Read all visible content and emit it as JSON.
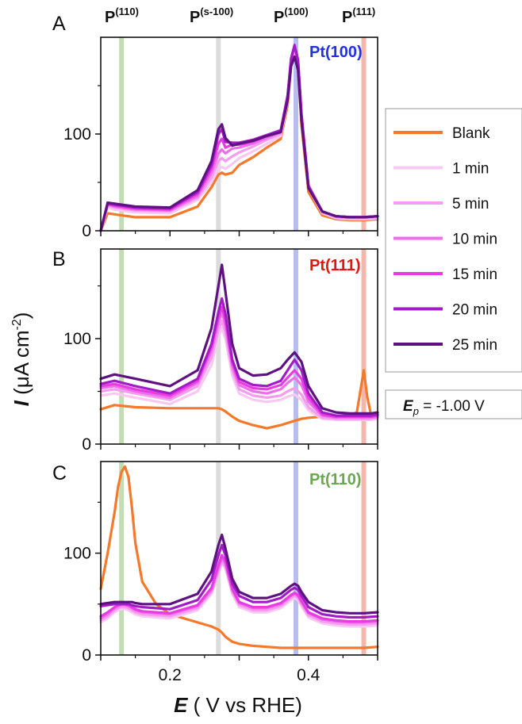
{
  "figure": {
    "peak_labels": [
      {
        "id": "p110",
        "base": "P",
        "sup": "(110)",
        "x": 0.13,
        "band_color": "#b9d7a6"
      },
      {
        "id": "ps100",
        "base": "P",
        "sup": "(s-100)",
        "x": 0.27,
        "band_color": "#d6d6d6"
      },
      {
        "id": "p100",
        "base": "P",
        "sup": "(100)",
        "x": 0.382,
        "band_color": "#aab0ee"
      },
      {
        "id": "p111",
        "base": "P",
        "sup": "(111)",
        "x": 0.48,
        "band_color": "#f2aaa0"
      }
    ],
    "ylabel": {
      "italic": "I",
      "unit_start": " (μA cm",
      "unit_sup": "-2",
      "unit_end": ")"
    },
    "xlabel": {
      "italic": "E",
      "rest": " ( V vs RHE)"
    },
    "potential_box": {
      "italic": "E",
      "sub": "p",
      "rest": " = -1.00 V"
    },
    "legend": [
      {
        "label": "Blank",
        "color": "#f4792b"
      },
      {
        "label": " 1 min",
        "color": "#f7c9f2"
      },
      {
        "label": " 5 min",
        "color": "#f49cef"
      },
      {
        "label": "10 min",
        "color": "#ef6ee9"
      },
      {
        "label": "15 min",
        "color": "#e83be2"
      },
      {
        "label": "20 min",
        "color": "#a21cc6"
      },
      {
        "label": "25 min",
        "color": "#5e1282"
      }
    ]
  },
  "chart_data": [
    {
      "type": "line",
      "panel": "A",
      "surface_label": "Pt(100)",
      "surface_color": "#2230e6",
      "xlim": [
        0.1,
        0.5
      ],
      "ylim": [
        0,
        200
      ],
      "xticks": [
        0.2,
        0.4
      ],
      "yticks": [
        0,
        100
      ],
      "x": [
        0.1,
        0.11,
        0.12,
        0.15,
        0.2,
        0.24,
        0.26,
        0.27,
        0.275,
        0.28,
        0.29,
        0.3,
        0.32,
        0.34,
        0.36,
        0.37,
        0.375,
        0.38,
        0.385,
        0.39,
        0.4,
        0.42,
        0.44,
        0.46,
        0.48,
        0.5
      ],
      "series": [
        {
          "name": "Blank",
          "values": [
            0,
            18,
            17,
            14,
            14,
            25,
            45,
            58,
            60,
            58,
            60,
            68,
            76,
            86,
            95,
            130,
            170,
            186,
            170,
            110,
            40,
            16,
            12,
            11,
            11,
            12
          ]
        },
        {
          "name": "1 min",
          "values": [
            0,
            24,
            22,
            19,
            18,
            32,
            50,
            64,
            66,
            64,
            69,
            75,
            82,
            90,
            98,
            134,
            172,
            188,
            172,
            116,
            44,
            18,
            13,
            12,
            12,
            13
          ]
        },
        {
          "name": "5 min",
          "values": [
            0,
            26,
            24,
            21,
            20,
            34,
            55,
            72,
            75,
            72,
            77,
            81,
            87,
            94,
            100,
            137,
            174,
            189,
            174,
            118,
            45,
            19,
            14,
            13,
            13,
            14
          ]
        },
        {
          "name": "10 min",
          "values": [
            0,
            27,
            25,
            22,
            21,
            36,
            60,
            80,
            84,
            80,
            85,
            86,
            90,
            96,
            102,
            139,
            176,
            190,
            176,
            120,
            46,
            20,
            15,
            14,
            14,
            15
          ]
        },
        {
          "name": "15 min",
          "values": [
            0,
            28,
            26,
            23,
            22,
            38,
            64,
            90,
            95,
            86,
            89,
            89,
            92,
            98,
            103,
            140,
            177,
            191,
            177,
            121,
            47,
            20,
            15,
            14,
            14,
            15
          ]
        },
        {
          "name": "20 min",
          "values": [
            0,
            28,
            27,
            24,
            23,
            40,
            68,
            100,
            105,
            92,
            91,
            91,
            94,
            99,
            104,
            140,
            178,
            192,
            176,
            120,
            46,
            20,
            15,
            14,
            14,
            15
          ]
        },
        {
          "name": "25 min",
          "values": [
            0,
            29,
            28,
            25,
            24,
            42,
            72,
            105,
            110,
            96,
            88,
            90,
            93,
            98,
            102,
            135,
            170,
            180,
            166,
            114,
            44,
            20,
            15,
            14,
            14,
            15
          ]
        }
      ]
    },
    {
      "type": "line",
      "panel": "B",
      "surface_label": "Pt(111)",
      "surface_color": "#e8150f",
      "xlim": [
        0.1,
        0.5
      ],
      "ylim": [
        0,
        185
      ],
      "xticks": [
        0.2,
        0.4
      ],
      "yticks": [
        0,
        100
      ],
      "x": [
        0.1,
        0.12,
        0.15,
        0.2,
        0.24,
        0.26,
        0.27,
        0.275,
        0.28,
        0.29,
        0.3,
        0.32,
        0.34,
        0.36,
        0.37,
        0.38,
        0.39,
        0.4,
        0.42,
        0.44,
        0.46,
        0.47,
        0.475,
        0.48,
        0.485,
        0.49,
        0.5
      ],
      "series": [
        {
          "name": "Blank",
          "values": [
            33,
            37,
            35,
            34,
            34,
            34,
            34,
            33,
            31,
            26,
            22,
            18,
            15,
            18,
            20,
            22,
            24,
            25,
            26,
            26,
            27,
            30,
            50,
            70,
            45,
            29,
            28
          ]
        },
        {
          "name": "1 min",
          "values": [
            46,
            48,
            44,
            38,
            50,
            75,
            102,
            110,
            100,
            65,
            48,
            42,
            40,
            42,
            45,
            47,
            42,
            32,
            24,
            23,
            23,
            23,
            23,
            23,
            23,
            23,
            24
          ]
        },
        {
          "name": "5 min",
          "values": [
            50,
            52,
            48,
            42,
            55,
            82,
            108,
            117,
            106,
            70,
            52,
            46,
            44,
            46,
            50,
            53,
            47,
            35,
            25,
            24,
            24,
            24,
            24,
            24,
            24,
            24,
            25
          ]
        },
        {
          "name": "10 min",
          "values": [
            53,
            55,
            50,
            44,
            58,
            88,
            115,
            125,
            113,
            74,
            56,
            50,
            48,
            52,
            58,
            63,
            56,
            40,
            27,
            25,
            25,
            25,
            25,
            25,
            25,
            25,
            26
          ]
        },
        {
          "name": "15 min",
          "values": [
            55,
            57,
            52,
            46,
            60,
            92,
            120,
            130,
            118,
            77,
            59,
            53,
            52,
            56,
            63,
            70,
            62,
            44,
            28,
            26,
            26,
            26,
            26,
            26,
            26,
            26,
            27
          ]
        },
        {
          "name": "20 min",
          "values": [
            57,
            60,
            55,
            48,
            62,
            95,
            125,
            138,
            124,
            80,
            62,
            56,
            55,
            60,
            70,
            80,
            70,
            48,
            30,
            27,
            27,
            27,
            27,
            27,
            27,
            27,
            28
          ]
        },
        {
          "name": "25 min",
          "values": [
            62,
            66,
            62,
            55,
            70,
            110,
            150,
            170,
            145,
            95,
            72,
            65,
            66,
            72,
            80,
            87,
            78,
            55,
            34,
            30,
            29,
            29,
            29,
            29,
            29,
            29,
            30
          ]
        }
      ]
    },
    {
      "type": "line",
      "panel": "C",
      "surface_label": "Pt(110)",
      "surface_color": "#6aa84f",
      "xlim": [
        0.1,
        0.5
      ],
      "ylim": [
        0,
        190
      ],
      "xticks": [
        0.2,
        0.4
      ],
      "yticks": [
        0,
        100
      ],
      "x": [
        0.1,
        0.11,
        0.12,
        0.125,
        0.13,
        0.135,
        0.14,
        0.145,
        0.15,
        0.16,
        0.18,
        0.2,
        0.24,
        0.26,
        0.27,
        0.275,
        0.28,
        0.29,
        0.3,
        0.32,
        0.34,
        0.36,
        0.375,
        0.38,
        0.385,
        0.39,
        0.4,
        0.42,
        0.44,
        0.46,
        0.48,
        0.5
      ],
      "series": [
        {
          "name": "Blank",
          "values": [
            65,
            100,
            140,
            165,
            180,
            185,
            175,
            145,
            110,
            72,
            50,
            40,
            32,
            28,
            25,
            22,
            18,
            13,
            11,
            9,
            8,
            7,
            7,
            7,
            7,
            7,
            7,
            7,
            7,
            7,
            7,
            8
          ]
        },
        {
          "name": "1 min",
          "values": [
            32,
            36,
            42,
            44,
            45,
            45,
            44,
            42,
            40,
            38,
            37,
            36,
            44,
            60,
            80,
            90,
            85,
            60,
            47,
            42,
            42,
            46,
            54,
            56,
            54,
            48,
            37,
            31,
            29,
            28,
            28,
            29
          ]
        },
        {
          "name": "5 min",
          "values": [
            34,
            38,
            44,
            46,
            47,
            47,
            46,
            44,
            42,
            40,
            39,
            38,
            46,
            62,
            82,
            92,
            87,
            62,
            49,
            44,
            44,
            48,
            56,
            58,
            56,
            50,
            39,
            33,
            31,
            30,
            30,
            31
          ]
        },
        {
          "name": "10 min",
          "values": [
            36,
            40,
            46,
            48,
            49,
            49,
            48,
            46,
            44,
            42,
            41,
            40,
            48,
            64,
            85,
            95,
            90,
            64,
            51,
            46,
            46,
            50,
            58,
            60,
            58,
            52,
            41,
            35,
            33,
            32,
            32,
            33
          ]
        },
        {
          "name": "15 min",
          "values": [
            38,
            42,
            47,
            49,
            50,
            50,
            49,
            47,
            45,
            43,
            42,
            41,
            49,
            66,
            88,
            98,
            92,
            65,
            52,
            47,
            47,
            51,
            59,
            61,
            59,
            53,
            42,
            36,
            34,
            33,
            33,
            34
          ]
        },
        {
          "name": "20 min",
          "values": [
            48,
            49,
            50,
            50,
            50,
            50,
            50,
            49,
            48,
            47,
            46,
            45,
            54,
            74,
            98,
            108,
            98,
            70,
            58,
            52,
            52,
            56,
            64,
            66,
            64,
            58,
            47,
            40,
            38,
            37,
            37,
            38
          ]
        },
        {
          "name": "25 min",
          "values": [
            50,
            51,
            52,
            52,
            52,
            52,
            52,
            52,
            51,
            50,
            50,
            50,
            60,
            82,
            108,
            118,
            105,
            75,
            62,
            56,
            56,
            60,
            68,
            70,
            68,
            62,
            52,
            44,
            42,
            41,
            41,
            42
          ]
        }
      ]
    }
  ]
}
